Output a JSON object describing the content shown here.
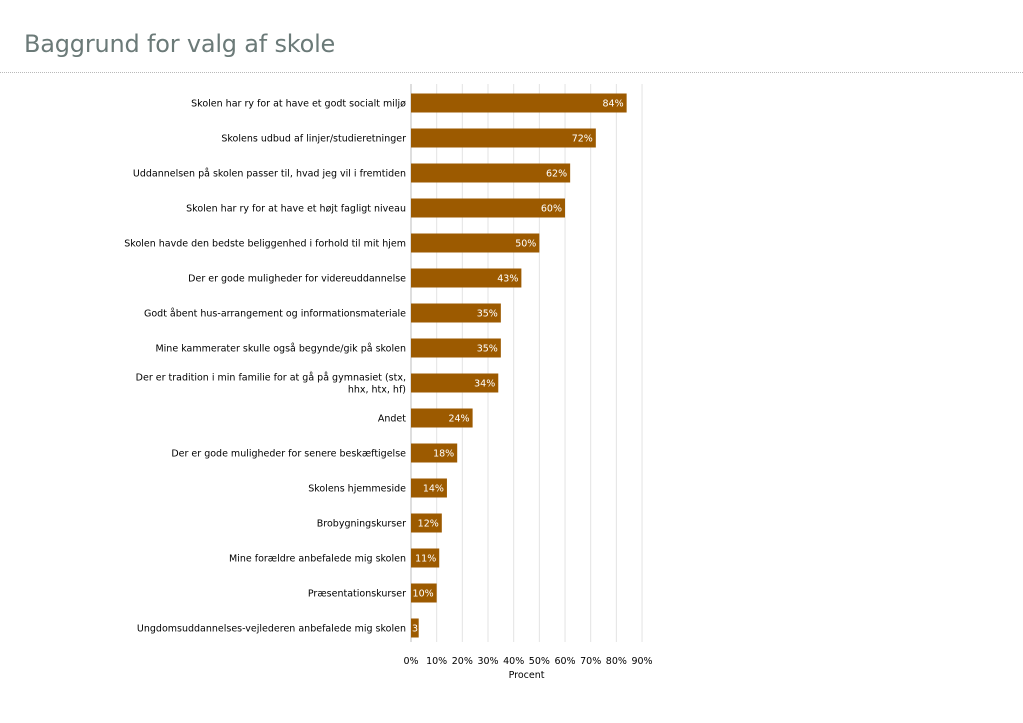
{
  "page": {
    "title": "Baggrund for valg af skole"
  },
  "chart_data": {
    "type": "bar",
    "orientation": "horizontal",
    "title": "",
    "xlabel": "Procent",
    "ylabel": "",
    "xlim": [
      0,
      90
    ],
    "x_ticks": [
      0,
      10,
      20,
      30,
      40,
      50,
      60,
      70,
      80,
      90
    ],
    "x_tick_labels": [
      "0%",
      "10%",
      "20%",
      "30%",
      "40%",
      "50%",
      "60%",
      "70%",
      "80%",
      "90%"
    ],
    "grid": "vertical gridlines on",
    "bar_color": "#9c5a00",
    "value_label_color": "#ffffff",
    "categories": [
      "Skolen har ry for at have et godt socialt miljø",
      "Skolens udbud af linjer/studieretninger",
      "Uddannelsen på skolen passer til, hvad jeg vil i fremtiden",
      "Skolen har ry for at have et højt fagligt niveau",
      "Skolen havde den bedste beliggenhed i forhold til mit hjem",
      "Der er gode muligheder for videreuddannelse",
      "Godt åbent hus-arrangement og informationsmateriale",
      "Mine kammerater skulle også begynde/gik på skolen",
      "Der er tradition i min familie for at gå på gymnasiet (stx, hhx, htx, hf)",
      "Andet",
      "Der er gode muligheder for senere beskæftigelse",
      "Skolens hjemmeside",
      "Brobygningskurser",
      "Mine forældre anbefalede mig skolen",
      "Præsentationskurser",
      "Ungdomsuddannelses-vejlederen anbefalede mig skolen"
    ],
    "values": [
      84,
      72,
      62,
      60,
      50,
      43,
      35,
      35,
      34,
      24,
      18,
      14,
      12,
      11,
      10,
      3
    ],
    "value_labels": [
      "84%",
      "72%",
      "62%",
      "60%",
      "50%",
      "43%",
      "35%",
      "35%",
      "34%",
      "24%",
      "18%",
      "14%",
      "12%",
      "11%",
      "10%",
      "3"
    ]
  }
}
